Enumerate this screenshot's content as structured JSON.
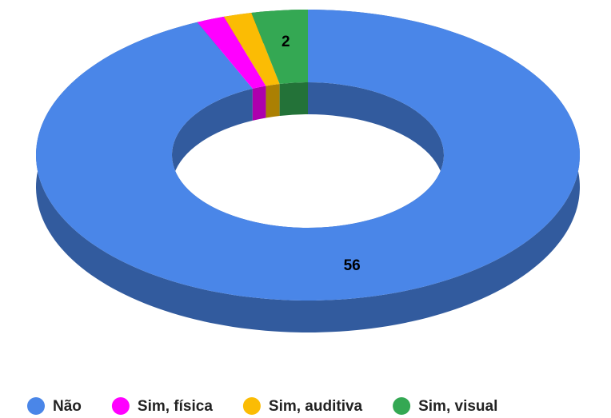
{
  "chart_data": {
    "type": "pie",
    "donut": true,
    "three_d": true,
    "categories": [
      "Não",
      "Sim, física",
      "Sim, auditiva",
      "Sim, visual"
    ],
    "values": [
      56,
      1,
      1,
      2
    ],
    "colors": [
      "#4a86e8",
      "#ff00ff",
      "#fbbc04",
      "#34a853"
    ],
    "legend": "bottom"
  }
}
